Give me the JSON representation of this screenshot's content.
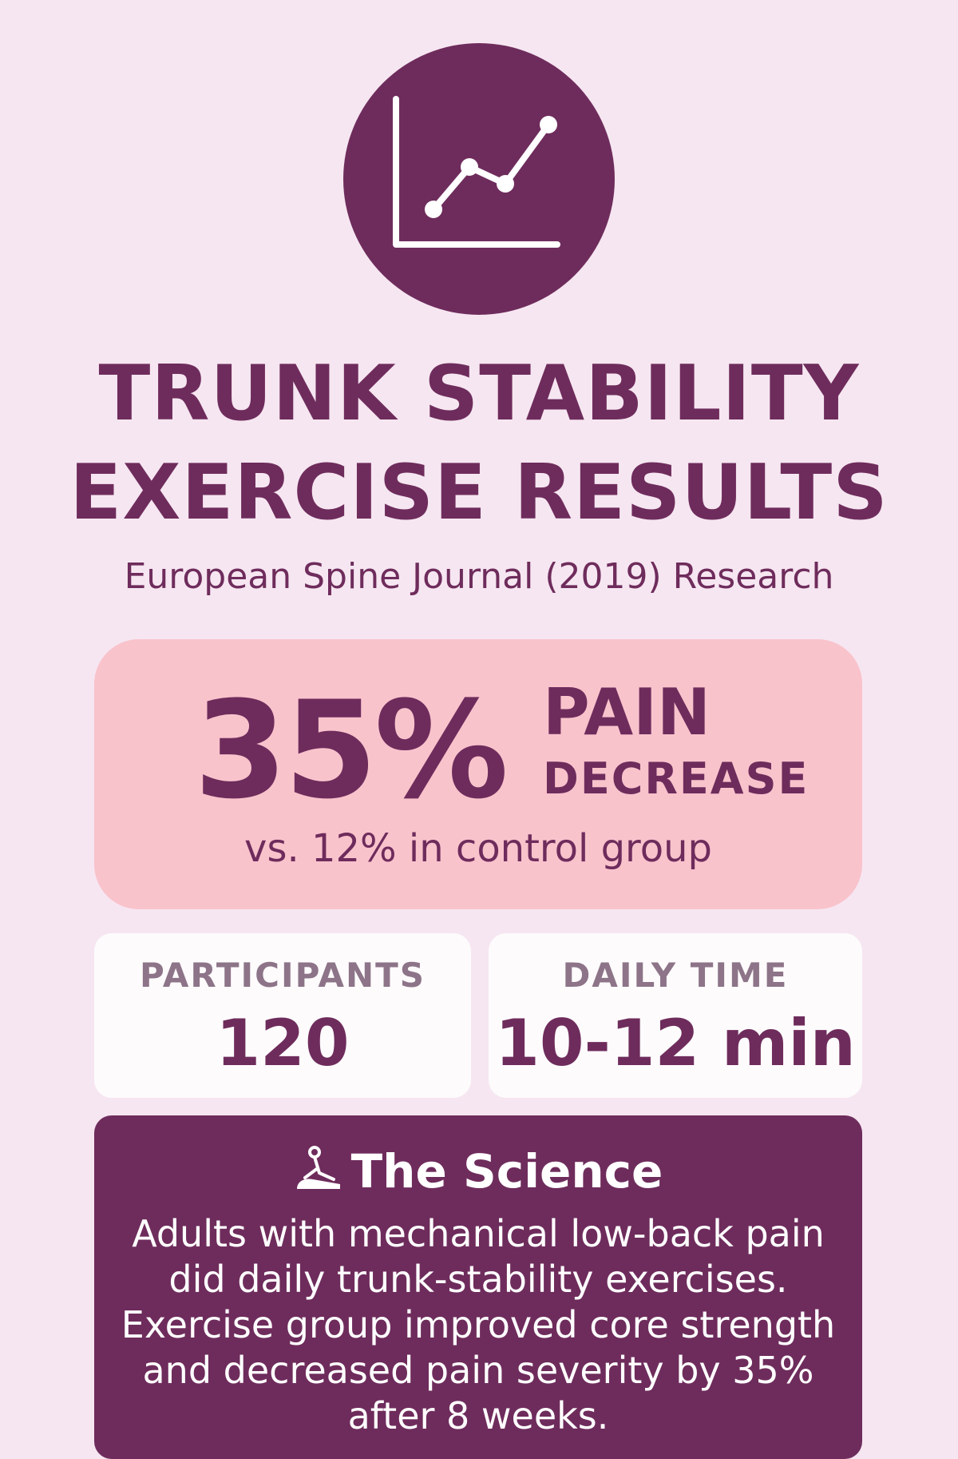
{
  "header": {
    "icon": "line-chart-icon",
    "title_line1": "TRUNK STABILITY",
    "title_line2": "EXERCISE RESULTS",
    "subtitle": "European Spine Journal (2019) Research"
  },
  "pain_card": {
    "percent": "35%",
    "label": "PAIN",
    "sublabel": "DECREASE",
    "comparison": "vs. 12% in control group"
  },
  "stats": [
    {
      "label": "PARTICIPANTS",
      "value": "120"
    },
    {
      "label": "DAILY TIME",
      "value": "10-12 min"
    }
  ],
  "science": {
    "icon": "researcher-icon",
    "heading": "The Science",
    "body": "Adults with mechanical low-back pain did daily trunk-stability exercises. Exercise group improved core strength and decreased pain severity by 35% after 8 weeks."
  },
  "colors": {
    "background": "#f6e6f1",
    "primary": "#6e2c5c",
    "highlight": "#f9c3cc",
    "card": "#fdfbfc",
    "muted": "#8d7488"
  }
}
